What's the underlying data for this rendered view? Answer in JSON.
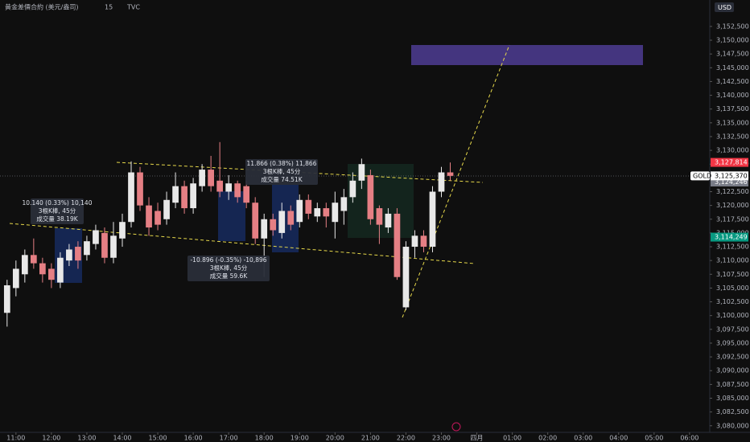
{
  "chart_data": {
    "type": "candlestick",
    "title": "黄金差價合約 (美元/盎司)",
    "interval": "15",
    "source": "TVC",
    "currency": "USD",
    "up_color": "#e8e8e8",
    "down_color": "#e57f84",
    "grid": false,
    "x": [
      10.75,
      11,
      11.25,
      11.5,
      11.75,
      12,
      12.25,
      12.5,
      12.75,
      13,
      13.25,
      13.5,
      13.75,
      14,
      14.25,
      14.5,
      14.75,
      15,
      15.25,
      15.5,
      15.75,
      16,
      16.25,
      16.5,
      16.75,
      17,
      17.25,
      17.5,
      17.75,
      18,
      18.25,
      18.5,
      18.75,
      19,
      19.25,
      19.5,
      19.75,
      20,
      20.25,
      20.5,
      20.75,
      21,
      21.25,
      21.5,
      21.75,
      22,
      22.25,
      22.5,
      22.75,
      23,
      23.25
    ],
    "open": [
      3100500,
      3105000,
      3107500,
      3111000,
      3109500,
      3108500,
      3106000,
      3110000,
      3112500,
      3111000,
      3113000,
      3115000,
      3110500,
      3114000,
      3117000,
      3126000,
      3120000,
      3119000,
      3117500,
      3120500,
      3123500,
      3119500,
      3123500,
      3126500,
      3124500,
      3122500,
      3124000,
      3123500,
      3120500,
      3114000,
      3117500,
      3115000,
      3119000,
      3117000,
      3121000,
      3118000,
      3119500,
      3117000,
      3119000,
      3121500,
      3124500,
      3125500,
      3119500,
      3116000,
      3118500,
      3101500,
      3112500,
      3114500,
      3112500,
      3122500,
      3126000
    ],
    "high": [
      3106500,
      3110000,
      3112000,
      3114000,
      3110500,
      3109500,
      3111500,
      3113000,
      3113500,
      3114500,
      3116500,
      3116000,
      3117000,
      3118500,
      3128000,
      3127000,
      3121500,
      3120500,
      3122500,
      3126000,
      3124500,
      3125000,
      3127500,
      3129000,
      3131500,
      3125500,
      3124500,
      3124500,
      3121500,
      3118500,
      3118500,
      3120500,
      3120000,
      3122000,
      3122000,
      3120500,
      3120500,
      3122500,
      3123000,
      3126000,
      3128500,
      3126500,
      3120000,
      3119500,
      3119500,
      3113500,
      3115500,
      3115500,
      3123500,
      3127000,
      3127800
    ],
    "low": [
      3098000,
      3103500,
      3106000,
      3108500,
      3106000,
      3105000,
      3105000,
      3109000,
      3108500,
      3110000,
      3112000,
      3109500,
      3109500,
      3112500,
      3116000,
      3119000,
      3114500,
      3115500,
      3116500,
      3119500,
      3118500,
      3118500,
      3122500,
      3122500,
      3121500,
      3121000,
      3120500,
      3119500,
      3113000,
      3107000,
      3114500,
      3114000,
      3115500,
      3116000,
      3117500,
      3117000,
      3116000,
      3114000,
      3116500,
      3120500,
      3123000,
      3116500,
      3113000,
      3115000,
      3106500,
      3101000,
      3110500,
      3111500,
      3111500,
      3121500,
      3124500
    ],
    "close": [
      3105500,
      3108500,
      3111000,
      3109500,
      3107500,
      3106500,
      3110500,
      3112000,
      3110000,
      3113500,
      3115500,
      3110500,
      3114500,
      3117000,
      3126000,
      3120000,
      3116000,
      3116500,
      3121000,
      3123500,
      3119500,
      3124000,
      3126500,
      3123500,
      3122500,
      3124000,
      3121500,
      3120500,
      3114000,
      3117500,
      3115500,
      3119000,
      3116500,
      3121000,
      3118500,
      3119500,
      3118000,
      3120500,
      3121500,
      3124500,
      3127500,
      3117500,
      3116500,
      3118500,
      3107000,
      3112500,
      3114500,
      3112500,
      3122500,
      3126000,
      3125370
    ],
    "xlim": [
      10.55,
      30.57
    ],
    "ylim": [
      3078800,
      3157300
    ],
    "xticks": [
      {
        "value": 11,
        "label": "11:00"
      },
      {
        "value": 12,
        "label": "12:00"
      },
      {
        "value": 13,
        "label": "13:00"
      },
      {
        "value": 14,
        "label": "14:00"
      },
      {
        "value": 15,
        "label": "15:00"
      },
      {
        "value": 16,
        "label": "16:00"
      },
      {
        "value": 17,
        "label": "17:00"
      },
      {
        "value": 18,
        "label": "18:00"
      },
      {
        "value": 19,
        "label": "19:00"
      },
      {
        "value": 20,
        "label": "20:00"
      },
      {
        "value": 21,
        "label": "21:00"
      },
      {
        "value": 22,
        "label": "22:00"
      },
      {
        "value": 23,
        "label": "23:00"
      },
      {
        "value": 24,
        "label": "四月"
      },
      {
        "value": 25,
        "label": "01:00"
      },
      {
        "value": 26,
        "label": "02:00"
      },
      {
        "value": 27,
        "label": "03:00"
      },
      {
        "value": 28,
        "label": "04:00"
      },
      {
        "value": 29,
        "label": "05:00"
      },
      {
        "value": 30,
        "label": "06:00"
      }
    ],
    "yticks": [
      {
        "value": 3080000,
        "label": "3,080,000"
      },
      {
        "value": 3082500,
        "label": "3,082,500"
      },
      {
        "value": 3085000,
        "label": "3,085,000"
      },
      {
        "value": 3087500,
        "label": "3,087,500"
      },
      {
        "value": 3090000,
        "label": "3,090,000"
      },
      {
        "value": 3092500,
        "label": "3,092,500"
      },
      {
        "value": 3095000,
        "label": "3,095,000"
      },
      {
        "value": 3097500,
        "label": "3,097,500"
      },
      {
        "value": 3100000,
        "label": "3,100,000"
      },
      {
        "value": 3102500,
        "label": "3,102,500"
      },
      {
        "value": 3105000,
        "label": "3,105,000"
      },
      {
        "value": 3107500,
        "label": "3,107,500"
      },
      {
        "value": 3110000,
        "label": "3,110,000"
      },
      {
        "value": 3112500,
        "label": "3,112,500"
      },
      {
        "value": 3115000,
        "label": "3,115,000"
      },
      {
        "value": 3117500,
        "label": "3,117,500"
      },
      {
        "value": 3120000,
        "label": "3,120,000"
      },
      {
        "value": 3122500,
        "label": "3,122,500"
      },
      {
        "value": 3125000,
        "label": "3,125,000"
      },
      {
        "value": 3127500,
        "label": "3,127,500"
      },
      {
        "value": 3130000,
        "label": "3,130,000"
      },
      {
        "value": 3132500,
        "label": "3,132,500"
      },
      {
        "value": 3135000,
        "label": "3,135,000"
      },
      {
        "value": 3137500,
        "label": "3,137,500"
      },
      {
        "value": 3140000,
        "label": "3,140,000"
      },
      {
        "value": 3142500,
        "label": "3,142,500"
      },
      {
        "value": 3145000,
        "label": "3,145,000"
      },
      {
        "value": 3147500,
        "label": "3,147,500"
      },
      {
        "value": 3150000,
        "label": "3,150,000"
      },
      {
        "value": 3152500,
        "label": "3,152,500"
      }
    ],
    "last_price": {
      "name": "GOLD",
      "value": 3125370,
      "label": "3,125,370",
      "color": "#ffffff"
    },
    "price_markers": [
      {
        "value": 3127814,
        "label": "3,127,814",
        "color": "#f23645"
      },
      {
        "value": 3124246,
        "label": "3,124,246",
        "color": "#787b86"
      },
      {
        "value": 3114249,
        "label": "3,114,249",
        "color": "#089981"
      }
    ],
    "annotations": [
      {
        "lines": [
          "10.140 (0.33%) 10,140",
          "3根K棒, 45分",
          "成交量 38.19K"
        ]
      },
      {
        "lines": [
          "11.866 (0.38%) 11,866",
          "3根K棒, 45分",
          "成交量 74.51K"
        ]
      },
      {
        "lines": [
          "-10.896 (-0.35%) -10,896",
          "3根K棒, 45分",
          "成交量 59.6K"
        ]
      }
    ]
  }
}
